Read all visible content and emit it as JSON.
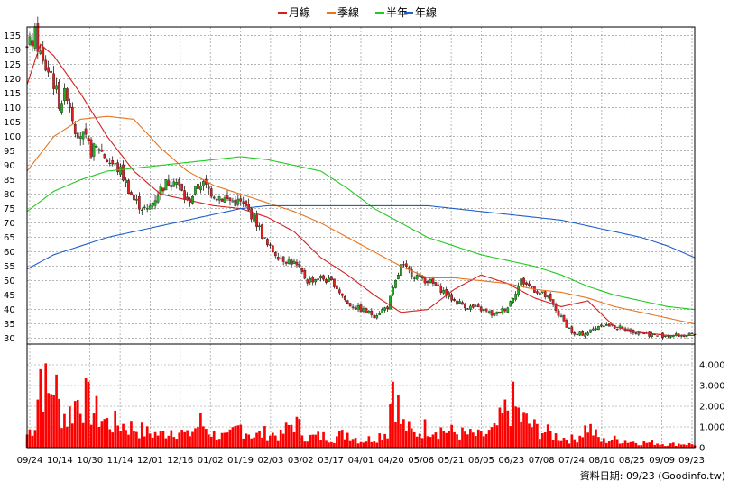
{
  "legend": [
    {
      "label": "月線",
      "color": "#d42020"
    },
    {
      "label": "季線",
      "color": "#e8741c"
    },
    {
      "label": "半年",
      "color": "#22c922"
    },
    {
      "label": "年線",
      "color": "#1f5fc8"
    }
  ],
  "footer": {
    "credit": "資料日期: 09/23  (Goodinfo.tw)"
  },
  "colors": {
    "up": "#22b022",
    "down": "#e02020",
    "volume": "#ff0000",
    "grid": "#888888",
    "frame": "#000000"
  },
  "chart_data": [
    {
      "type": "candlestick",
      "title": "",
      "y_ticks": [
        30,
        35,
        40,
        45,
        50,
        55,
        60,
        65,
        70,
        75,
        80,
        85,
        90,
        95,
        100,
        105,
        110,
        115,
        120,
        125,
        130,
        135
      ],
      "ylim": [
        28,
        138
      ],
      "x_tick_labels": [
        "09/24",
        "10/14",
        "10/30",
        "11/14",
        "12/01",
        "12/16",
        "01/02",
        "01/19",
        "02/03",
        "03/02",
        "03/17",
        "04/01",
        "04/20",
        "05/06",
        "05/21",
        "06/05",
        "06/23",
        "07/08",
        "07/24",
        "08/10",
        "08/25",
        "09/09",
        "09/23"
      ],
      "grid": true,
      "series": [
        {
          "name": "月線",
          "color": "#d42020",
          "x": [
            0,
            5,
            10,
            20,
            30,
            40,
            50,
            60,
            70,
            80,
            90,
            100,
            110,
            120,
            130,
            140,
            150,
            160,
            170,
            180,
            190,
            200,
            210,
            220,
            230,
            240,
            250
          ],
          "values": [
            118,
            132,
            128,
            115,
            100,
            88,
            80,
            78,
            76,
            75,
            72,
            67,
            58,
            52,
            45,
            39,
            40,
            47,
            52,
            49,
            44,
            41,
            43,
            34,
            32,
            31,
            31
          ]
        },
        {
          "name": "季線",
          "color": "#e8741c",
          "x": [
            0,
            10,
            20,
            30,
            40,
            50,
            60,
            70,
            80,
            90,
            100,
            110,
            120,
            130,
            140,
            150,
            160,
            170,
            180,
            190,
            200,
            210,
            220,
            230,
            240,
            250
          ],
          "values": [
            88,
            100,
            106,
            107,
            106,
            96,
            88,
            83,
            80,
            77,
            74,
            70,
            65,
            60,
            55,
            51,
            51,
            50,
            49,
            47,
            46,
            44,
            41,
            39,
            37,
            35
          ]
        },
        {
          "name": "半年",
          "color": "#22c922",
          "x": [
            0,
            10,
            20,
            30,
            40,
            50,
            60,
            70,
            80,
            90,
            100,
            110,
            120,
            130,
            140,
            150,
            160,
            170,
            180,
            190,
            200,
            210,
            220,
            230,
            240,
            250
          ],
          "values": [
            74,
            81,
            85,
            88,
            89,
            90,
            91,
            92,
            93,
            92,
            90,
            88,
            82,
            75,
            70,
            65,
            62,
            59,
            57,
            55,
            52,
            48,
            45,
            43,
            41,
            40
          ]
        },
        {
          "name": "年線",
          "color": "#1f5fc8",
          "x": [
            0,
            10,
            20,
            30,
            40,
            50,
            60,
            70,
            80,
            90,
            100,
            110,
            120,
            130,
            140,
            150,
            160,
            170,
            180,
            190,
            200,
            210,
            220,
            230,
            240,
            250
          ],
          "values": [
            54,
            59,
            62,
            65,
            67,
            69,
            71,
            73,
            75,
            76,
            76,
            76,
            76,
            76,
            76,
            76,
            75,
            74,
            73,
            72,
            71,
            69,
            67,
            65,
            62,
            58
          ]
        }
      ],
      "price_path": {
        "x": [
          0,
          3,
          6,
          9,
          12,
          15,
          18,
          21,
          24,
          27,
          30,
          35,
          40,
          45,
          50,
          55,
          60,
          65,
          70,
          75,
          80,
          85,
          90,
          95,
          100,
          105,
          110,
          115,
          120,
          125,
          130,
          135,
          140,
          145,
          150,
          155,
          160,
          165,
          170,
          175,
          180,
          185,
          190,
          195,
          200,
          205,
          210,
          215,
          220,
          225,
          230,
          235,
          240,
          245,
          250
        ],
        "values": [
          130,
          135,
          125,
          122,
          112,
          115,
          103,
          100,
          95,
          96,
          92,
          88,
          78,
          74,
          82,
          86,
          77,
          84,
          80,
          78,
          77,
          72,
          62,
          58,
          56,
          50,
          51,
          49,
          42,
          40,
          38,
          41,
          55,
          52,
          50,
          47,
          43,
          41,
          40,
          38,
          41,
          50,
          47,
          44,
          37,
          31,
          32,
          35,
          34,
          33,
          32,
          31,
          31,
          31,
          31
        ]
      }
    },
    {
      "type": "bar",
      "title": "",
      "ylabel": "",
      "y_ticks": [
        0,
        1000,
        2000,
        3000,
        4000
      ],
      "y_tick_labels": [
        "0",
        "1,000",
        "2,000",
        "3,000",
        "4,000"
      ],
      "ylim": [
        0,
        5000
      ],
      "volume_path": {
        "x": [
          0,
          3,
          5,
          8,
          10,
          12,
          15,
          20,
          25,
          30,
          35,
          40,
          45,
          50,
          55,
          60,
          65,
          70,
          75,
          80,
          85,
          90,
          95,
          100,
          105,
          110,
          115,
          120,
          125,
          130,
          135,
          137,
          140,
          145,
          150,
          155,
          160,
          165,
          170,
          175,
          180,
          182,
          185,
          190,
          195,
          200,
          205,
          210,
          215,
          220,
          225,
          230,
          235,
          240,
          245,
          250
        ],
        "values": [
          800,
          1500,
          4700,
          3000,
          4200,
          2500,
          1800,
          3200,
          2200,
          1500,
          1400,
          1200,
          900,
          800,
          1200,
          700,
          1500,
          800,
          600,
          1300,
          700,
          900,
          700,
          1600,
          600,
          700,
          600,
          900,
          400,
          600,
          1000,
          4400,
          1500,
          800,
          1300,
          1100,
          900,
          800,
          700,
          1000,
          2400,
          2600,
          1800,
          1200,
          900,
          600,
          500,
          1300,
          400,
          500,
          400,
          300,
          300,
          200,
          250,
          200
        ]
      }
    }
  ]
}
